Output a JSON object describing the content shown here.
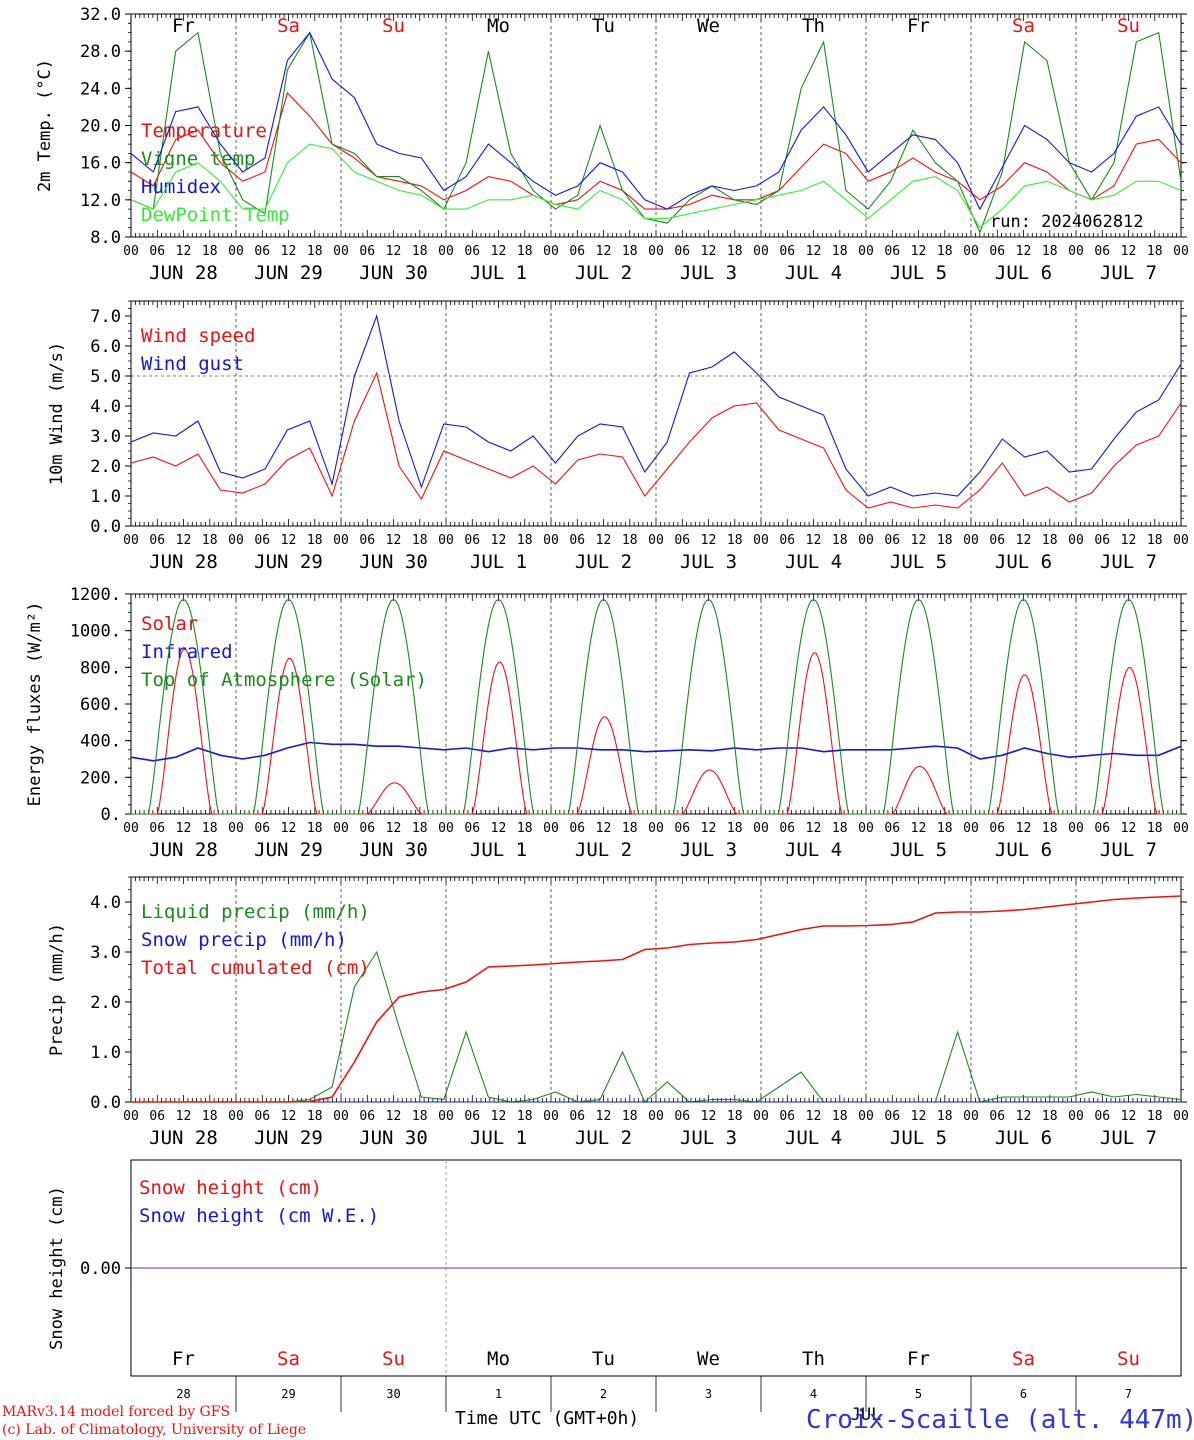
{
  "colors": {
    "red": "#ee1111",
    "dark_green": "#1a8a1a",
    "blue": "#1515dd",
    "light_green": "#33ee33",
    "purple": "#7a2aa0",
    "black": "#000000"
  },
  "days": [
    "Fr",
    "Sa",
    "Su",
    "Mo",
    "Tu",
    "We",
    "Th",
    "Fr",
    "Sa",
    "Su"
  ],
  "weekend_days": [
    1,
    2,
    8,
    9
  ],
  "date_labels": [
    "JUN 28",
    "JUN 29",
    "JUN 30",
    "JUL  1",
    "JUL  2",
    "JUL  3",
    "JUL  4",
    "JUL  5",
    "JUL  6",
    "JUL  7"
  ],
  "hour_labels": [
    "00",
    "06",
    "12",
    "18"
  ],
  "bottom_day_numbers": [
    "28",
    "29",
    "30",
    "1",
    "2",
    "3",
    "4",
    "5",
    "6",
    "7"
  ],
  "bottom_month": "JUL",
  "run_label": "run: 2024062812",
  "footer": {
    "model_line": "MARv3.14 model forced by GFS",
    "lab_line": "(c) Lab. of Climatology, University of Liege",
    "time_axis_label": "Time UTC (GMT+0h)",
    "station": "Croix-Scaille (alt. 447m)"
  },
  "chart_data": [
    {
      "type": "line",
      "ylabel": "2m Temp. (°C)",
      "ylim": [
        8,
        32
      ],
      "yticks": [
        "8.0",
        "12.0",
        "16.0",
        "20.0",
        "24.0",
        "28.0",
        "32.0"
      ],
      "x_unit": "hours since JUN 28 00 UTC (step 6h, 0-240)",
      "series": [
        {
          "name": "Temperature",
          "color": "red",
          "values": [
            15,
            13.5,
            18.5,
            19.5,
            16,
            14,
            15,
            23.5,
            21,
            18,
            16.5,
            14.5,
            14,
            13.5,
            12,
            13,
            14.5,
            14,
            12.5,
            11.5,
            12,
            14,
            13,
            11,
            11,
            11.5,
            12.5,
            12,
            12,
            13,
            15.5,
            18,
            17,
            14,
            15,
            16.5,
            15,
            14,
            12,
            13.5,
            16,
            15,
            13,
            12,
            13.5,
            18,
            18.5,
            16
          ]
        },
        {
          "name": "Vigne temp",
          "color": "dark_green",
          "values": [
            12,
            11,
            28,
            30,
            17,
            12,
            10.5,
            26,
            30,
            18,
            17,
            14.5,
            14.5,
            13,
            11,
            16,
            28,
            17,
            13,
            11,
            12.5,
            20,
            13,
            10,
            9.5,
            12,
            13.5,
            12,
            11.5,
            13,
            24,
            29,
            13,
            11,
            14,
            19.5,
            16,
            14,
            8.5,
            15,
            29,
            27,
            16,
            12,
            16,
            29,
            30,
            14
          ]
        },
        {
          "name": "Humidex",
          "color": "blue",
          "values": [
            17,
            15,
            21.5,
            22,
            18,
            15,
            16.5,
            27,
            30,
            25,
            23,
            18,
            17,
            16.5,
            13,
            14.5,
            18,
            16,
            14,
            12.5,
            13.5,
            16,
            15,
            12,
            11,
            12.5,
            13.5,
            13,
            13.5,
            15,
            19.5,
            22,
            19,
            15,
            17,
            19,
            18.5,
            16,
            11,
            15.5,
            20,
            18.5,
            16,
            15,
            17,
            21,
            22,
            18
          ]
        },
        {
          "name": "DewPoint Temp",
          "color": "light_green",
          "values": [
            12,
            11,
            15,
            16,
            14,
            11,
            11,
            16,
            18,
            17.5,
            15,
            14,
            13,
            12.5,
            11,
            11,
            12,
            12,
            12.5,
            11.5,
            11,
            13,
            12,
            10,
            10,
            10.5,
            11,
            11.5,
            12,
            12.5,
            13,
            14,
            12,
            10,
            12,
            14,
            14.5,
            13,
            9,
            11,
            13.5,
            14,
            13,
            12,
            12.5,
            14,
            14,
            13
          ]
        }
      ]
    },
    {
      "type": "line",
      "ylabel": "10m Wind (m/s)",
      "ylim": [
        0,
        7.5
      ],
      "yticks": [
        "0.0",
        "1.0",
        "2.0",
        "3.0",
        "4.0",
        "5.0",
        "6.0",
        "7.0"
      ],
      "reference_line": 5.0,
      "x_unit": "hours since JUN 28 00 UTC (step 6h, 0-240)",
      "series": [
        {
          "name": "Wind speed",
          "color": "red",
          "values": [
            2.1,
            2.3,
            2.0,
            2.4,
            1.2,
            1.1,
            1.4,
            2.2,
            2.6,
            1.0,
            3.5,
            5.1,
            2.0,
            0.9,
            2.5,
            2.2,
            1.9,
            1.6,
            2.0,
            1.4,
            2.2,
            2.4,
            2.3,
            1.0,
            1.9,
            2.8,
            3.6,
            4.0,
            4.1,
            3.2,
            2.9,
            2.6,
            1.2,
            0.6,
            0.8,
            0.6,
            0.7,
            0.6,
            1.2,
            2.1,
            1.0,
            1.3,
            0.8,
            1.1,
            2.0,
            2.7,
            3.0,
            4.1
          ]
        },
        {
          "name": "Wind gust",
          "color": "blue",
          "values": [
            2.8,
            3.1,
            3.0,
            3.5,
            1.8,
            1.6,
            1.9,
            3.2,
            3.5,
            1.4,
            5.0,
            7.0,
            3.5,
            1.3,
            3.4,
            3.3,
            2.8,
            2.5,
            3.0,
            2.1,
            3.0,
            3.4,
            3.3,
            1.8,
            2.8,
            5.1,
            5.3,
            5.8,
            5.1,
            4.3,
            4.0,
            3.7,
            1.9,
            1.0,
            1.3,
            1.0,
            1.1,
            1.0,
            1.8,
            2.9,
            2.3,
            2.5,
            1.8,
            1.9,
            2.9,
            3.8,
            4.2,
            5.4
          ]
        }
      ]
    },
    {
      "type": "area",
      "ylabel": "Energy fluxes (W/m²)",
      "ylim": [
        0,
        1200
      ],
      "yticks": [
        "0.",
        "200.",
        "400.",
        "600.",
        "800.",
        "1000.",
        "1200."
      ],
      "x_unit": "hours since JUN 28 00 UTC (step 6h, 0-240)",
      "series": [
        {
          "name": "Solar",
          "color": "red",
          "daily_peak": [
            900,
            850,
            170,
            830,
            530,
            240,
            880,
            260,
            760,
            800
          ]
        },
        {
          "name": "Infrared",
          "color": "blue",
          "values": [
            310,
            290,
            310,
            360,
            320,
            300,
            320,
            360,
            390,
            380,
            380,
            370,
            370,
            360,
            350,
            360,
            340,
            360,
            350,
            360,
            360,
            350,
            350,
            340,
            345,
            350,
            345,
            360,
            350,
            360,
            360,
            340,
            350,
            350,
            350,
            360,
            370,
            360,
            300,
            320,
            360,
            330,
            310,
            320,
            330,
            320,
            320,
            370
          ]
        },
        {
          "name": "Top of Atmosphere (Solar)",
          "color": "dark_green",
          "daily_peak": [
            1170,
            1170,
            1170,
            1170,
            1170,
            1170,
            1170,
            1170,
            1170,
            1170
          ]
        }
      ]
    },
    {
      "type": "line",
      "ylabel": "Precip (mm/h)",
      "ylim": [
        0,
        4.5
      ],
      "yticks": [
        "0.0",
        "1.0",
        "2.0",
        "3.0",
        "4.0"
      ],
      "x_unit": "hours since JUN 28 00 UTC (step 6h, 0-240)",
      "series": [
        {
          "name": "Liquid precip (mm/h)",
          "color": "dark_green",
          "values": [
            0,
            0,
            0,
            0,
            0,
            0,
            0,
            0,
            0.05,
            0.3,
            2.3,
            3.0,
            1.5,
            0.1,
            0.05,
            1.4,
            0.1,
            0,
            0.05,
            0.2,
            0,
            0.05,
            1.0,
            0,
            0.4,
            0,
            0.05,
            0.05,
            0,
            0.3,
            0.6,
            0,
            0,
            0,
            0,
            0,
            0,
            1.4,
            0,
            0.1,
            0.1,
            0.1,
            0.1,
            0.2,
            0.1,
            0.15,
            0.1,
            0.05
          ]
        },
        {
          "name": "Snow precip (mm/h)",
          "color": "blue",
          "values": [
            0,
            0,
            0,
            0,
            0,
            0,
            0,
            0,
            0,
            0,
            0,
            0,
            0,
            0,
            0,
            0,
            0,
            0,
            0,
            0,
            0,
            0,
            0,
            0,
            0,
            0,
            0,
            0,
            0,
            0,
            0,
            0,
            0,
            0,
            0,
            0,
            0,
            0,
            0,
            0,
            0,
            0,
            0,
            0,
            0,
            0,
            0,
            0
          ]
        },
        {
          "name": "Total cumulated (cm)",
          "color": "red",
          "values": [
            0,
            0,
            0,
            0,
            0,
            0,
            0,
            0,
            0.01,
            0.1,
            0.8,
            1.6,
            2.1,
            2.2,
            2.25,
            2.4,
            2.7,
            2.72,
            2.74,
            2.77,
            2.8,
            2.82,
            2.85,
            3.05,
            3.08,
            3.15,
            3.18,
            3.2,
            3.25,
            3.35,
            3.45,
            3.52,
            3.52,
            3.53,
            3.55,
            3.6,
            3.78,
            3.8,
            3.8,
            3.82,
            3.85,
            3.9,
            3.95,
            4.0,
            4.05,
            4.08,
            4.1,
            4.12
          ]
        }
      ]
    },
    {
      "type": "line",
      "ylabel": "Snow height (cm)",
      "ylim": [
        -1,
        1
      ],
      "yticks": [
        "0.00"
      ],
      "series": [
        {
          "name": "Snow height (cm)",
          "color": "red",
          "values": [
            0,
            0
          ]
        },
        {
          "name": "Snow height (cm W.E.)",
          "color": "blue",
          "values": [
            0,
            0
          ]
        }
      ]
    }
  ]
}
